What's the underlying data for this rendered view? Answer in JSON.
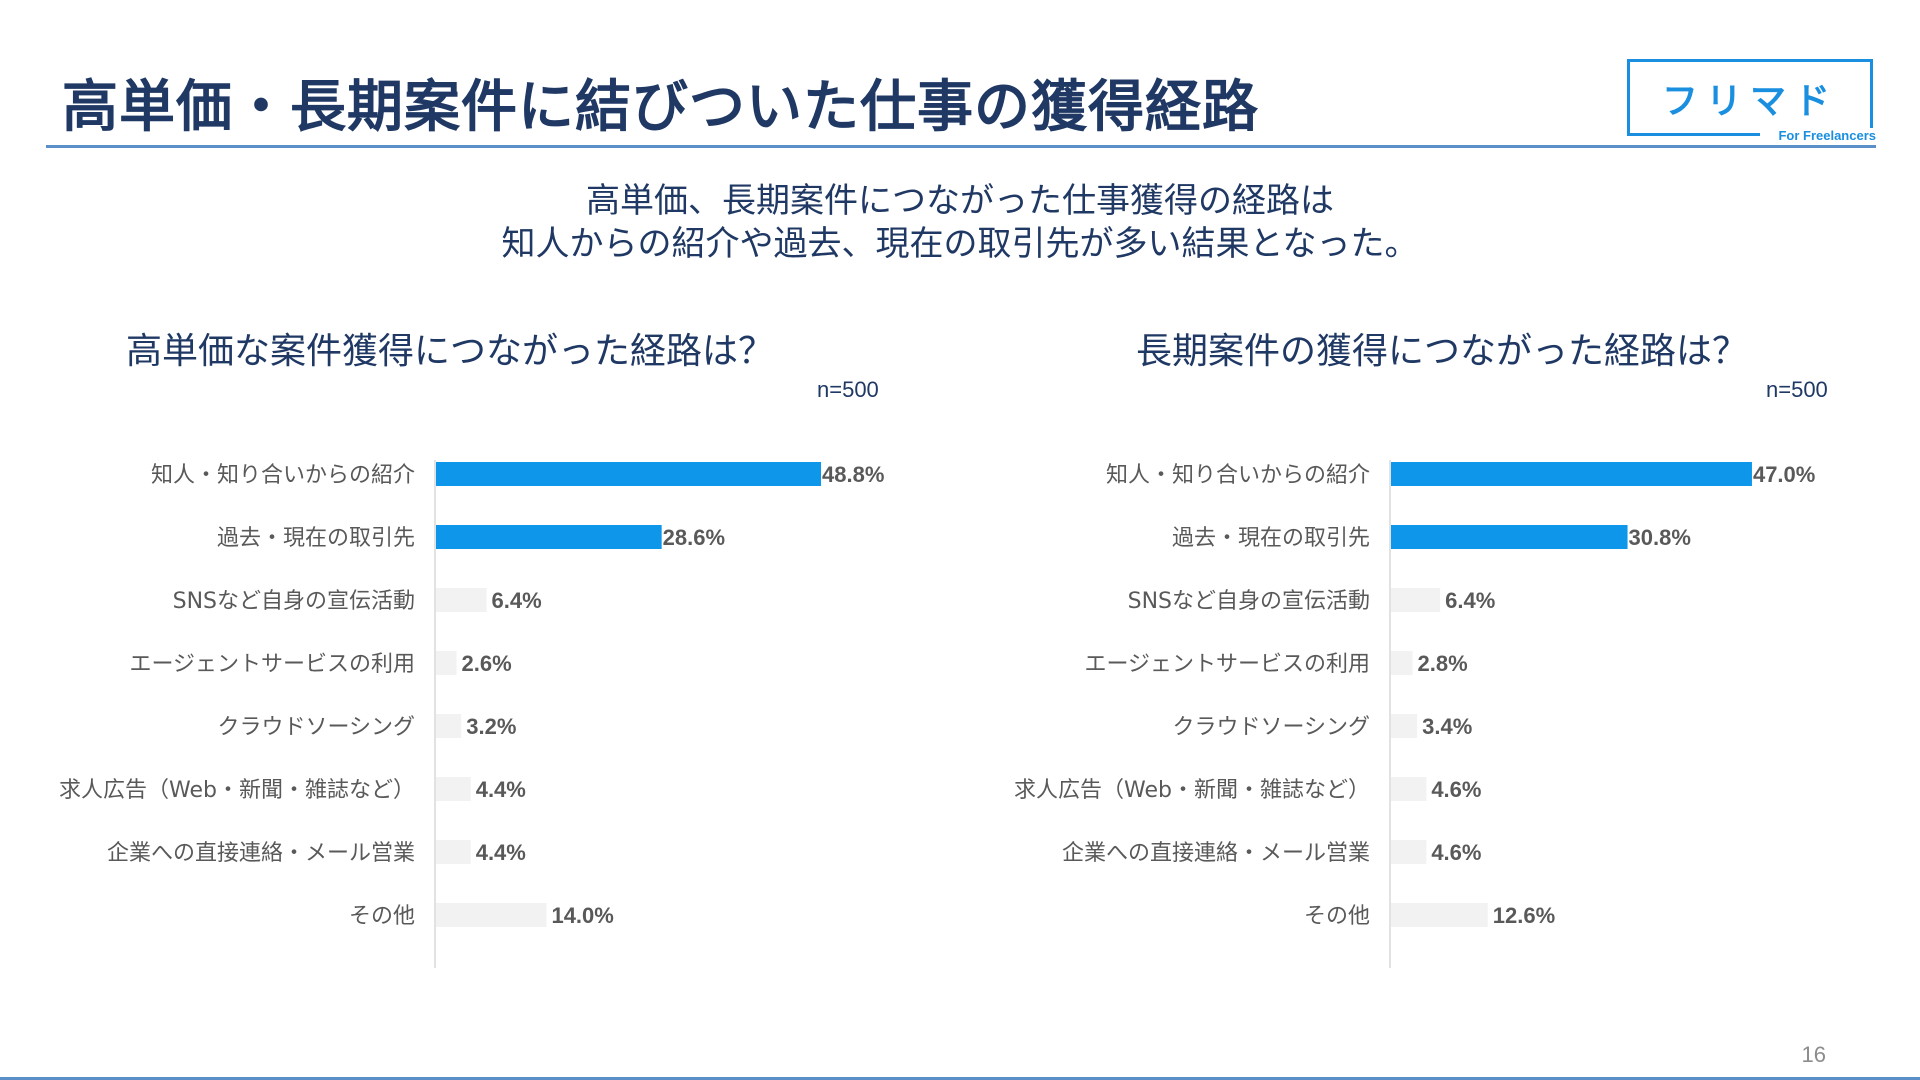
{
  "header": {
    "title": "高単価・長期案件に結びついた仕事の獲得経路",
    "logo_main": "フリマド",
    "logo_sub": "For Freelancers"
  },
  "lead": {
    "line1": "高単価、長期案件につながった仕事獲得の経路は",
    "line2": "知人からの紹介や過去、現在の取引先が多い結果となった。"
  },
  "page_number": "16",
  "colors": {
    "highlight_bar": "#0e96ea",
    "normal_bar": "#f2f2f2",
    "axis": "#d9d9d9",
    "title": "#1f3864"
  },
  "chart_data": [
    {
      "type": "bar",
      "orientation": "horizontal",
      "title": "高単価な案件獲得につながった経路は？",
      "sample": "n=500",
      "categories": [
        "知人・知り合いからの紹介",
        "過去・現在の取引先",
        "SNSなど自身の宣伝活動",
        "エージェントサービスの利用",
        "クラウドソーシング",
        "求人広告（Web・新聞・雑誌など）",
        "企業への直接連絡・メール営業",
        "その他"
      ],
      "values": [
        48.8,
        28.6,
        6.4,
        2.6,
        3.2,
        4.4,
        4.4,
        14.0
      ],
      "value_labels": [
        "48.8%",
        "28.6%",
        "6.4%",
        "2.6%",
        "3.2%",
        "4.4%",
        "4.4%",
        "14.0%"
      ],
      "highlight": [
        true,
        true,
        false,
        false,
        false,
        false,
        false,
        false
      ],
      "unit": "%"
    },
    {
      "type": "bar",
      "orientation": "horizontal",
      "title": "長期案件の獲得につながった経路は？",
      "sample": "n=500",
      "categories": [
        "知人・知り合いからの紹介",
        "過去・現在の取引先",
        "SNSなど自身の宣伝活動",
        "エージェントサービスの利用",
        "クラウドソーシング",
        "求人広告（Web・新聞・雑誌など）",
        "企業への直接連絡・メール営業",
        "その他"
      ],
      "values": [
        47.0,
        30.8,
        6.4,
        2.8,
        3.4,
        4.6,
        4.6,
        12.6
      ],
      "value_labels": [
        "47.0%",
        "30.8%",
        "6.4%",
        "2.8%",
        "3.4%",
        "4.6%",
        "4.6%",
        "12.6%"
      ],
      "highlight": [
        true,
        true,
        false,
        false,
        false,
        false,
        false,
        false
      ],
      "unit": "%"
    }
  ]
}
